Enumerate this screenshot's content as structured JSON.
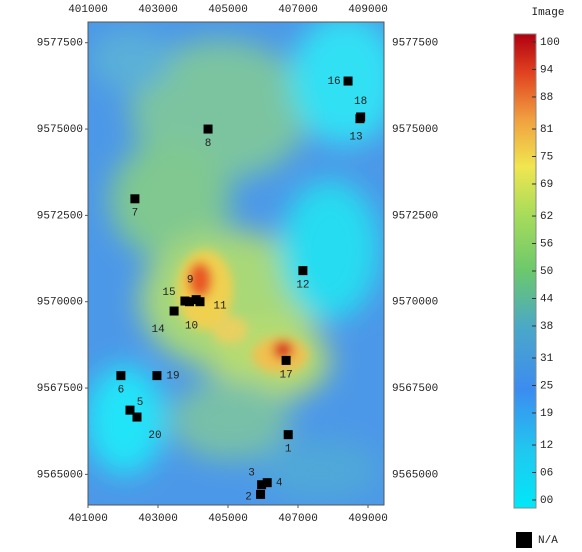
{
  "map": {
    "legend_title": "Image",
    "na_label": "N/A",
    "xlim": [
      401000,
      409457
    ],
    "ylim": [
      9564113,
      9578100
    ],
    "xticks": [
      401000,
      403000,
      405000,
      407000,
      409000
    ],
    "yticks": [
      9565000,
      9567500,
      9570000,
      9572500,
      9575000,
      9577500
    ],
    "colorbar_ticks": [
      {
        "value": 0,
        "label": "00"
      },
      {
        "value": 6,
        "label": "06"
      },
      12,
      19,
      25,
      31,
      38,
      44,
      50,
      56,
      62,
      69,
      75,
      81,
      88,
      94,
      100
    ],
    "colorbar_lim": [
      0,
      100
    ],
    "points": [
      {
        "label": "1",
        "x": 406720,
        "y": 9566150
      },
      {
        "label": "2",
        "x": 405930,
        "y": 9564420
      },
      {
        "label": "3",
        "x": 405960,
        "y": 9564700
      },
      {
        "label": "4",
        "x": 406120,
        "y": 9564760
      },
      {
        "label": "5",
        "x": 402200,
        "y": 9566860
      },
      {
        "label": "6",
        "x": 401940,
        "y": 9567860
      },
      {
        "label": "7",
        "x": 402340,
        "y": 9572980
      },
      {
        "label": "8",
        "x": 404430,
        "y": 9575000
      },
      {
        "label": "9",
        "x": 404090,
        "y": 9570060
      },
      {
        "label": "10",
        "x": 403900,
        "y": 9570000
      },
      {
        "label": "11",
        "x": 404200,
        "y": 9570000
      },
      {
        "label": "12",
        "x": 407140,
        "y": 9570900
      },
      {
        "label": "13",
        "x": 408770,
        "y": 9575300
      },
      {
        "label": "14",
        "x": 403460,
        "y": 9569730
      },
      {
        "label": "15",
        "x": 403770,
        "y": 9570020
      },
      {
        "label": "16",
        "x": 408430,
        "y": 9576390
      },
      {
        "label": "17",
        "x": 406660,
        "y": 9568300
      },
      {
        "label": "18",
        "x": 408790,
        "y": 9575350
      },
      {
        "label": "19",
        "x": 402970,
        "y": 9567860
      },
      {
        "label": "20",
        "x": 402400,
        "y": 9566660
      }
    ]
  }
}
